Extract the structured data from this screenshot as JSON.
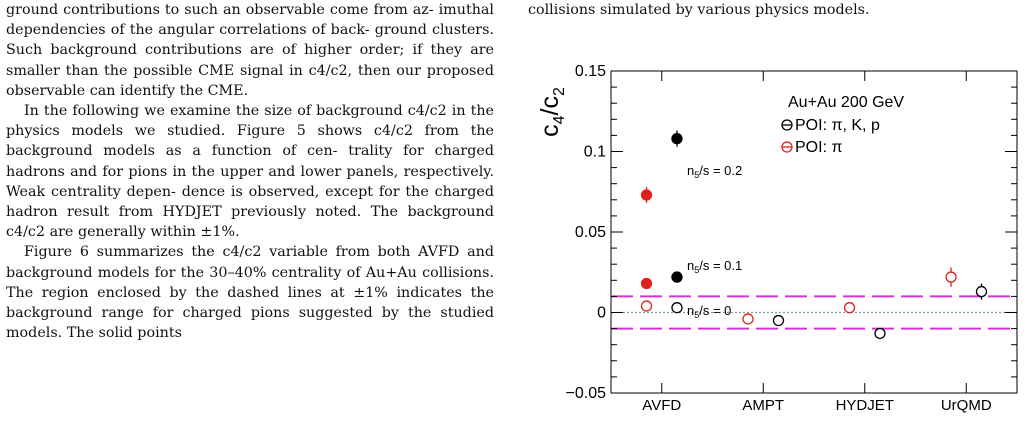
{
  "left_text": {
    "p1_lines": [
      "ground contributions to such an observable come from az-",
      "imuthal dependencies of the angular correlations of back-",
      "ground clusters. Such background contributions are of",
      "higher order; if they are smaller than the possible CME",
      "signal in c4/c2, then our proposed observable can identify",
      "the CME."
    ],
    "p2_lines": [
      "In the following we examine the size of background",
      "c4/c2 in the physics models we studied. Figure 5 shows",
      "c4/c2 from the background models as a function of cen-",
      "trality for charged hadrons and for pions in the upper",
      "and lower panels, respectively. Weak centrality depen-",
      "dence is observed, except for the charged hadron result",
      "from HYDJET previously noted. The background c4/c2",
      "are generally within ±1%."
    ],
    "p3_lines": [
      "Figure 6 summarizes the c4/c2 variable from both AVFD",
      "and background models for the 30–40% centrality of",
      "Au+Au collisions. The region enclosed by the dashed",
      "lines at ±1% indicates the background range for charged",
      "pions suggested by the studied models. The solid points"
    ]
  },
  "caption_tail": "collisions simulated by various physics models.",
  "chart_data": {
    "type": "scatter",
    "title": "Au+Au 200 GeV",
    "ylabel": "c4/c2",
    "xlabel": "",
    "categories": [
      "AVFD",
      "AMPT",
      "HYDJET",
      "UrQMD"
    ],
    "ylim": [
      -0.05,
      0.15
    ],
    "yticks": [
      {
        "value": -0.05,
        "label": "−0.05"
      },
      {
        "value": 0,
        "label": "0"
      },
      {
        "value": 0.05,
        "label": "0.05"
      },
      {
        "value": 0.1,
        "label": "0.1"
      },
      {
        "value": 0.15,
        "label": "0.15"
      }
    ],
    "band": {
      "lower": -0.01,
      "upper": 0.01,
      "color": "#d633d6"
    },
    "zero_line_color": "#7f9aa8",
    "legend": {
      "placement": "top-right",
      "title": "Au+Au 200 GeV",
      "entries": [
        {
          "label": "POI: π, K, p",
          "color": "#000000"
        },
        {
          "label": "POI: π",
          "color": "#e0201b"
        }
      ]
    },
    "annotations": [
      {
        "text": "n5/s = 0.2",
        "x": 0.15,
        "y": 0.088
      },
      {
        "text": "n5/s = 0.1",
        "x": 0.15,
        "y": 0.029
      },
      {
        "text": "n5/s = 0",
        "x": 0.15,
        "y": 0.001
      }
    ],
    "series": [
      {
        "name": "POI: π, K, p",
        "color": "#000000",
        "points": [
          {
            "x": 0.15,
            "y": 0.108,
            "err": 0.005,
            "filled": true
          },
          {
            "x": 0.15,
            "y": 0.022,
            "err": 0.0015,
            "filled": true
          },
          {
            "x": 0.15,
            "y": 0.003,
            "err": 0.0015,
            "filled": false
          },
          {
            "x": 1.15,
            "y": -0.005,
            "err": 0.001,
            "filled": false
          },
          {
            "x": 2.15,
            "y": -0.013,
            "err": 0.001,
            "filled": false
          },
          {
            "x": 3.15,
            "y": 0.013,
            "err": 0.005,
            "filled": false
          }
        ]
      },
      {
        "name": "POI: π",
        "color": "#e0201b",
        "points": [
          {
            "x": -0.15,
            "y": 0.073,
            "err": 0.005,
            "filled": true
          },
          {
            "x": -0.15,
            "y": 0.018,
            "err": 0.0015,
            "filled": true
          },
          {
            "x": -0.15,
            "y": 0.004,
            "err": 0.0015,
            "filled": false
          },
          {
            "x": 0.85,
            "y": -0.004,
            "err": 0.001,
            "filled": false
          },
          {
            "x": 1.85,
            "y": 0.003,
            "err": 0.001,
            "filled": false
          },
          {
            "x": 2.85,
            "y": 0.022,
            "err": 0.006,
            "filled": false
          }
        ]
      }
    ]
  }
}
